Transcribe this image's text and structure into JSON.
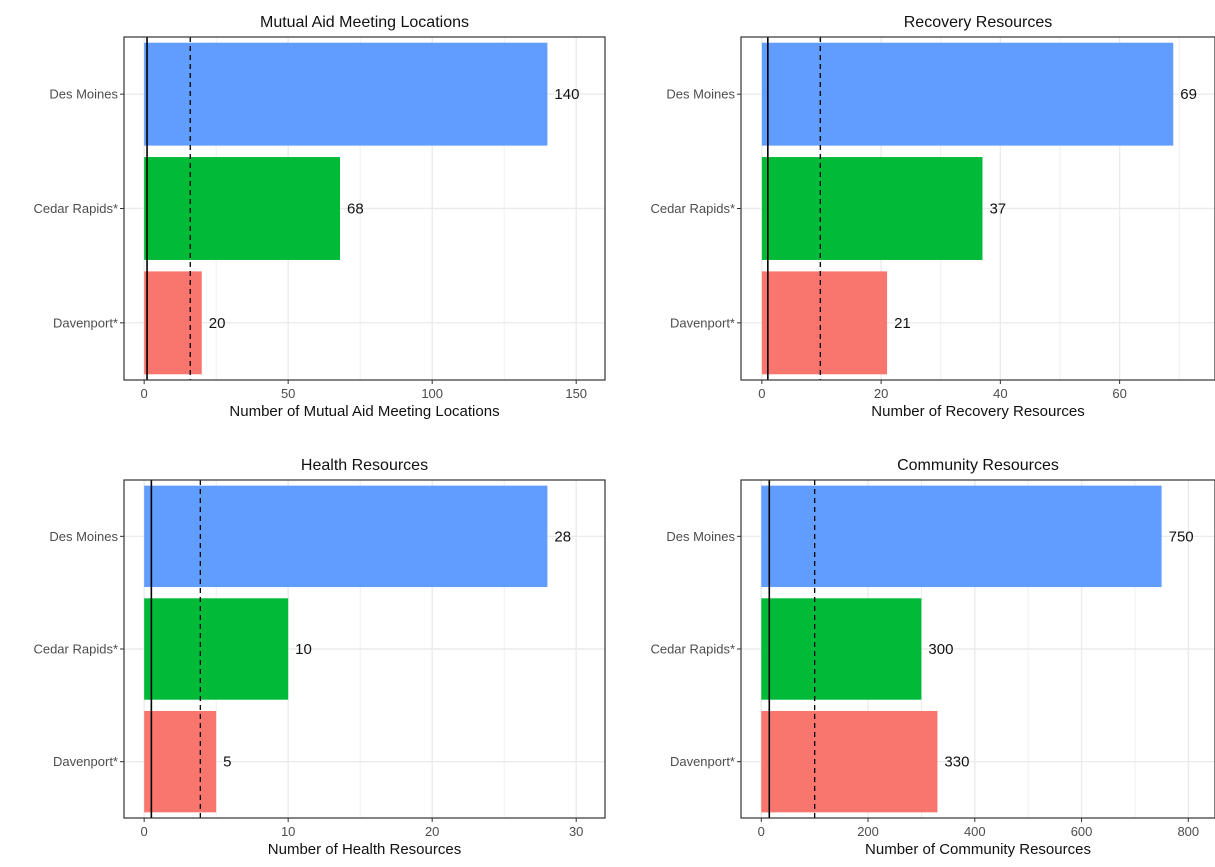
{
  "chart_data": [
    {
      "type": "bar",
      "orientation": "horizontal",
      "title": "Mutual Aid Meeting Locations",
      "xlabel": "Number of Mutual Aid Meeting Locations",
      "ylabel": "",
      "categories": [
        "Des Moines",
        "Cedar Rapids*",
        "Davenport*"
      ],
      "values": [
        140,
        68,
        20
      ],
      "data_labels": [
        "140",
        "68",
        "20"
      ],
      "xlim": [
        -7,
        160
      ],
      "xticks": [
        0,
        50,
        100,
        150
      ],
      "xtick_labels": [
        "0",
        "50",
        "100",
        "150"
      ],
      "reference_lines": [
        {
          "style": "solid",
          "value": 1
        },
        {
          "style": "dashed",
          "value": 16
        }
      ],
      "grid": true,
      "legend": "none"
    },
    {
      "type": "bar",
      "orientation": "horizontal",
      "title": "Recovery Resources",
      "xlabel": "Number of Recovery Resources",
      "ylabel": "",
      "categories": [
        "Des Moines",
        "Cedar Rapids*",
        "Davenport*"
      ],
      "values": [
        69,
        37,
        21
      ],
      "data_labels": [
        "69",
        "37",
        "21"
      ],
      "xlim": [
        -3.5,
        76
      ],
      "xticks": [
        0,
        20,
        40,
        60
      ],
      "xtick_labels": [
        "0",
        "20",
        "40",
        "60"
      ],
      "reference_lines": [
        {
          "style": "solid",
          "value": 1
        },
        {
          "style": "dashed",
          "value": 9.8
        }
      ],
      "grid": true,
      "legend": "none"
    },
    {
      "type": "bar",
      "orientation": "horizontal",
      "title": "Health Resources",
      "xlabel": "Number of Health Resources",
      "ylabel": "",
      "categories": [
        "Des Moines",
        "Cedar Rapids*",
        "Davenport*"
      ],
      "values": [
        28,
        10,
        5
      ],
      "data_labels": [
        "28",
        "10",
        "5"
      ],
      "xlim": [
        -1.4,
        32
      ],
      "xticks": [
        0,
        10,
        20,
        30
      ],
      "xtick_labels": [
        "0",
        "10",
        "20",
        "30"
      ],
      "reference_lines": [
        {
          "style": "solid",
          "value": 0.5
        },
        {
          "style": "dashed",
          "value": 3.9
        }
      ],
      "grid": true,
      "legend": "none"
    },
    {
      "type": "bar",
      "orientation": "horizontal",
      "title": "Community Resources",
      "xlabel": "Number of Community Resources",
      "ylabel": "",
      "categories": [
        "Des Moines",
        "Cedar Rapids*",
        "Davenport*"
      ],
      "values": [
        750,
        300,
        330
      ],
      "data_labels": [
        "750",
        "300",
        "330"
      ],
      "xlim": [
        -38,
        850
      ],
      "xticks": [
        0,
        200,
        400,
        600,
        800
      ],
      "xtick_labels": [
        "0",
        "200",
        "400",
        "600",
        "800"
      ],
      "reference_lines": [
        {
          "style": "solid",
          "value": 15
        },
        {
          "style": "dashed",
          "value": 100
        }
      ],
      "grid": true,
      "legend": "none"
    }
  ],
  "colors": {
    "Des Moines": "#619CFF",
    "Cedar Rapids*": "#00BA38",
    "Davenport*": "#F8766D",
    "grid": "#ebebeb",
    "panel_border": "#333333"
  }
}
